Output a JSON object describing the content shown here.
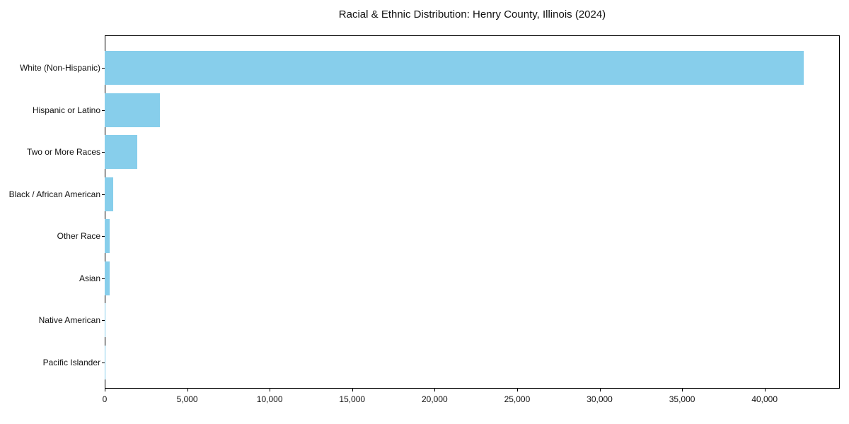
{
  "chart_data": {
    "type": "bar",
    "orientation": "horizontal",
    "title": "Racial & Ethnic Distribution: Henry County, Illinois (2024)",
    "categories": [
      "White (Non-Hispanic)",
      "Hispanic or Latino",
      "Two or More Races",
      "Black / African American",
      "Other Race",
      "Asian",
      "Native American",
      "Pacific Islander"
    ],
    "values": [
      42370,
      3360,
      1960,
      510,
      310,
      285,
      40,
      10
    ],
    "xlabel": "",
    "ylabel": "",
    "xlim": [
      0,
      44560
    ],
    "xticks": [
      0,
      5000,
      10000,
      15000,
      20000,
      25000,
      30000,
      35000,
      40000
    ],
    "xtick_labels": [
      "0",
      "5,000",
      "10,000",
      "15,000",
      "20,000",
      "25,000",
      "30,000",
      "35,000",
      "40,000"
    ],
    "bar_color": "#87CEEB",
    "frame_color": "#000000",
    "grid": false,
    "legend": null
  }
}
